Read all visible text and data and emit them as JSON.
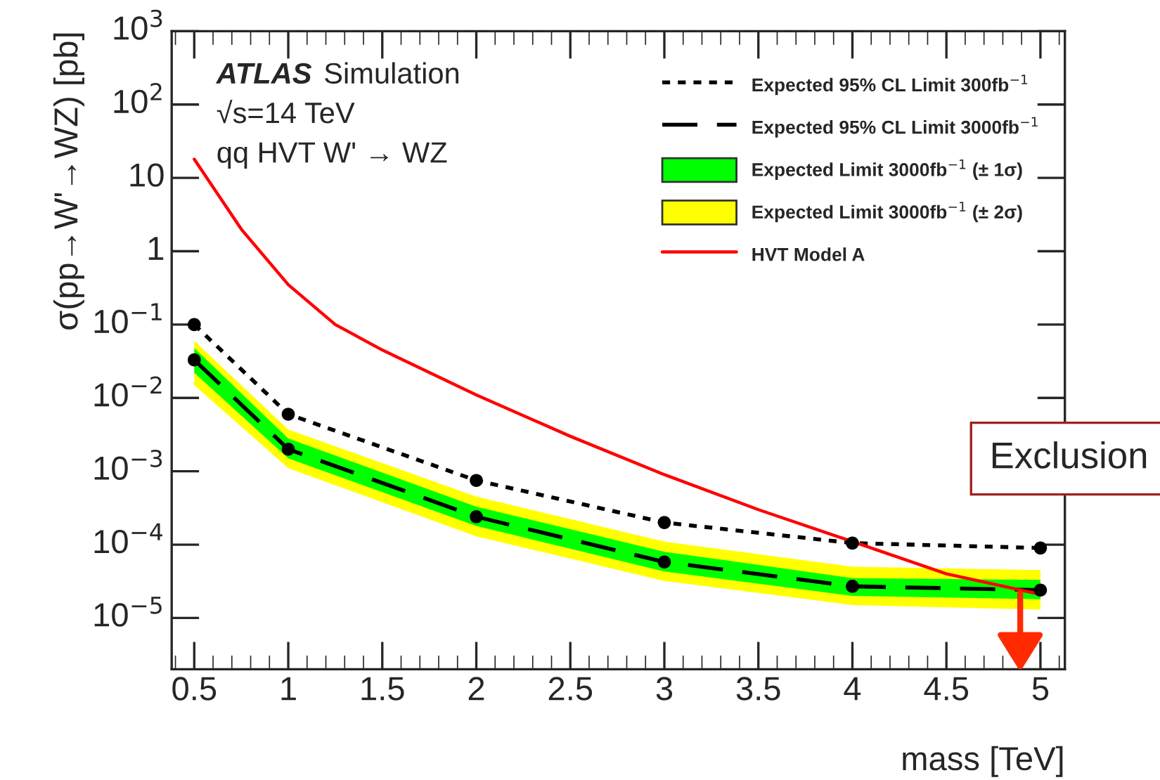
{
  "chart_data": {
    "type": "line",
    "xlabel": "mass [TeV]",
    "ylabel": "σ(pp→W'→WZ) [pb]",
    "x": [
      0.5,
      1,
      2,
      3,
      4,
      5
    ],
    "series": [
      {
        "name": "Expected 95% CL Limit 300fb$^{−1}$",
        "color": "#000000",
        "line_style": "dotted",
        "marker": "circle",
        "values": [
          0.1,
          0.006,
          0.00075,
          0.0002,
          0.000105,
          9e-05
        ]
      },
      {
        "name": "Expected 95% CL Limit 3000fb$^{−1}$",
        "color": "#000000",
        "line_style": "dashed",
        "marker": "circle",
        "values": [
          0.033,
          0.002,
          0.00024,
          5.8e-05,
          2.7e-05,
          2.4e-05
        ]
      },
      {
        "name": "Expected Limit 3000fb$^{−1}$ (± 1σ)",
        "type": "area",
        "color": "#00ff00",
        "values": [
          null,
          null,
          null,
          null,
          null,
          null
        ],
        "lower": [
          0.022,
          0.0015,
          0.00018,
          4.3e-05,
          2e-05,
          1.8e-05
        ],
        "upper": [
          0.048,
          0.0028,
          0.00033,
          8e-05,
          3.5e-05,
          3.3e-05
        ]
      },
      {
        "name": "Expected Limit 3000fb$^{−1}$ (± 2σ)",
        "type": "area",
        "color": "#ffff00",
        "values": [
          null,
          null,
          null,
          null,
          null,
          null
        ],
        "lower": [
          0.015,
          0.0011,
          0.00013,
          3.2e-05,
          1.5e-05,
          1.3e-05
        ],
        "upper": [
          0.06,
          0.0037,
          0.00045,
          0.00011,
          5e-05,
          4.5e-05
        ]
      },
      {
        "name": "HVT Model A",
        "color": "#ff0000",
        "line_style": "solid",
        "marker": "none",
        "x": [
          0.5,
          0.75,
          1,
          1.25,
          1.5,
          2,
          2.5,
          3,
          3.5,
          4,
          4.5,
          5
        ],
        "values": [
          18,
          2,
          0.35,
          0.1,
          0.045,
          0.011,
          0.003,
          0.0009,
          0.0003,
          0.00011,
          4e-05,
          2.1e-05
        ]
      }
    ],
    "log": "y",
    "xlim": [
      0.38,
      5.13
    ],
    "ylim": [
      2e-06,
      1000
    ],
    "xticks": [
      0.5,
      1,
      1.5,
      2,
      2.5,
      3,
      3.5,
      4,
      4.5,
      5
    ],
    "yticks": [
      {
        "value": 1000,
        "label": "10$^{3}$"
      },
      {
        "value": 100,
        "label": "10$^{2}$"
      },
      10,
      1,
      {
        "value": 0.1,
        "label": "10$^{−1}$"
      },
      {
        "value": 0.01,
        "label": "10$^{−2}$"
      },
      {
        "value": 0.001,
        "label": "10$^{−3}$"
      },
      {
        "value": 0.0001,
        "label": "10$^{−4}$"
      },
      {
        "value": 1e-05,
        "label": "10$^{−5}$"
      }
    ],
    "annotations": [
      "ATLAS",
      "Simulation",
      "√s=14 TeV",
      "qq HVT W' → WZ",
      "Exclusion"
    ],
    "grid": false,
    "legend": "top right"
  }
}
